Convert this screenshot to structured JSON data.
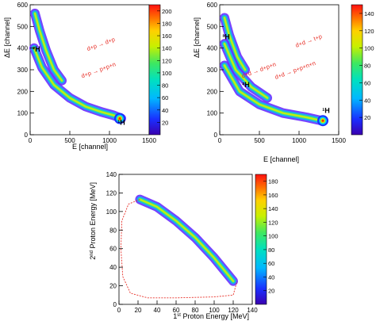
{
  "chart_data": [
    {
      "type": "heatmap",
      "xlabel": "E [channel]",
      "ylabel": "ΔE [channel]",
      "xlim": [
        0,
        1500
      ],
      "ylim": [
        0,
        600
      ],
      "x_ticks": [
        0,
        500,
        1000,
        1500
      ],
      "y_ticks": [
        0,
        100,
        200,
        300,
        400,
        500,
        600
      ],
      "colorbar": {
        "min": 0,
        "max": 210,
        "ticks": [
          20,
          40,
          60,
          80,
          100,
          120,
          140,
          160,
          180,
          200
        ]
      },
      "bands": [
        {
          "id": "deuteron",
          "points": [
            [
              60,
              560
            ],
            [
              120,
              480
            ],
            [
              200,
              390
            ],
            [
              300,
              300
            ],
            [
              400,
              250
            ]
          ]
        },
        {
          "id": "proton",
          "points": [
            [
              50,
              400
            ],
            [
              150,
              310
            ],
            [
              300,
              230
            ],
            [
              500,
              170
            ],
            [
              700,
              130
            ],
            [
              900,
              105
            ],
            [
              1050,
              90
            ],
            [
              1150,
              75
            ]
          ]
        }
      ],
      "annotations": [
        {
          "label": "²H",
          "x": 80,
          "y": 385,
          "color": "#000000"
        },
        {
          "label": "¹H",
          "x": 1150,
          "y": 45,
          "color": "#000000"
        },
        {
          "label": "d+p → d+p",
          "x": 900,
          "y": 410,
          "color": "#e8322a"
        },
        {
          "label": "d+p → p+p+n",
          "x": 870,
          "y": 290,
          "color": "#e8322a"
        }
      ],
      "peak": {
        "x": 1130,
        "y": 75
      }
    },
    {
      "type": "heatmap",
      "xlabel": "E [channel]",
      "ylabel": "ΔE [channel]",
      "xlim": [
        0,
        1500
      ],
      "ylim": [
        0,
        600
      ],
      "x_ticks": [
        0,
        500,
        1000,
        1500
      ],
      "y_ticks": [
        0,
        100,
        200,
        300,
        400,
        500,
        600
      ],
      "colorbar": {
        "min": 0,
        "max": 150,
        "ticks": [
          20,
          40,
          60,
          80,
          100,
          120,
          140
        ]
      },
      "bands": [
        {
          "id": "triton",
          "points": [
            [
              60,
              540
            ],
            [
              120,
              460
            ],
            [
              220,
              360
            ],
            [
              320,
              300
            ]
          ]
        },
        {
          "id": "deuteron",
          "points": [
            [
              60,
              420
            ],
            [
              200,
              300
            ],
            [
              400,
              220
            ],
            [
              600,
              170
            ]
          ]
        },
        {
          "id": "proton",
          "points": [
            [
              60,
              320
            ],
            [
              250,
              200
            ],
            [
              500,
              140
            ],
            [
              800,
              100
            ],
            [
              1100,
              80
            ],
            [
              1280,
              65
            ]
          ]
        }
      ],
      "annotations": [
        {
          "label": "³H",
          "x": 80,
          "y": 440,
          "color": "#000000"
        },
        {
          "label": "²H",
          "x": 330,
          "y": 220,
          "color": "#000000"
        },
        {
          "label": "¹H",
          "x": 1340,
          "y": 100,
          "color": "#000000"
        },
        {
          "label": "d+d → t+p",
          "x": 1130,
          "y": 425,
          "color": "#e8322a"
        },
        {
          "label": "d+d → d+p+n",
          "x": 500,
          "y": 290,
          "color": "#e8322a"
        },
        {
          "label": "d+d → p+p+n+n",
          "x": 960,
          "y": 290,
          "color": "#e8322a"
        }
      ],
      "peak": {
        "x": 1300,
        "y": 65
      }
    },
    {
      "type": "heatmap",
      "xlabel": "1st Proton Energy [MeV]",
      "ylabel": "2nd Proton Energy [MeV]",
      "xlim": [
        0,
        140
      ],
      "ylim": [
        0,
        140
      ],
      "x_ticks": [
        0,
        20,
        40,
        60,
        80,
        100,
        120,
        140
      ],
      "y_ticks": [
        0,
        20,
        40,
        60,
        80,
        100,
        120,
        140
      ],
      "colorbar": {
        "min": 0,
        "max": 190,
        "ticks": [
          20,
          40,
          60,
          80,
          100,
          120,
          140,
          160,
          180
        ]
      },
      "bands": [
        {
          "id": "locus",
          "points": [
            [
              22,
              113
            ],
            [
              40,
              105
            ],
            [
              60,
              90
            ],
            [
              80,
              72
            ],
            [
              100,
              50
            ],
            [
              120,
              25
            ]
          ]
        }
      ],
      "kinematic_boundary": [
        [
          22,
          113
        ],
        [
          10,
          108
        ],
        [
          3,
          90
        ],
        [
          2,
          60
        ],
        [
          4,
          30
        ],
        [
          12,
          12
        ],
        [
          30,
          7
        ],
        [
          60,
          7
        ],
        [
          100,
          8
        ],
        [
          120,
          10
        ],
        [
          124,
          25
        ]
      ]
    }
  ]
}
